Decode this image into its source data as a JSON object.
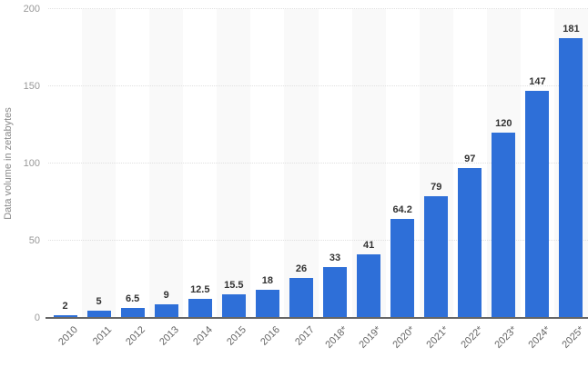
{
  "chart_data": {
    "type": "bar",
    "title": "",
    "xlabel": "",
    "ylabel": "Data volume in zetabytes",
    "categories": [
      "2010",
      "2011",
      "2012",
      "2013",
      "2014",
      "2015",
      "2016",
      "2017",
      "2018*",
      "2019*",
      "2020*",
      "2021*",
      "2022*",
      "2023*",
      "2024*",
      "2025*"
    ],
    "values": [
      2,
      5,
      6.5,
      9,
      12.5,
      15.5,
      18,
      26,
      33,
      41,
      64.2,
      79,
      97,
      120,
      147,
      181
    ],
    "ylim": [
      0,
      200
    ],
    "yticks": [
      0,
      50,
      100,
      150,
      200
    ],
    "grid": "horizontal-dotted",
    "legend": "none",
    "background_bands": "alternating-columns",
    "colors": {
      "bar": "#2e6fd8",
      "band_alt": "#f9f9f9",
      "gridline": "#e0e0e0",
      "axis_line": "#666666",
      "value_label": "#333333",
      "y_tick_label": "#999999",
      "x_tick_label": "#666666",
      "y_axis_title": "#8a8a8a",
      "background": "#ffffff"
    }
  }
}
